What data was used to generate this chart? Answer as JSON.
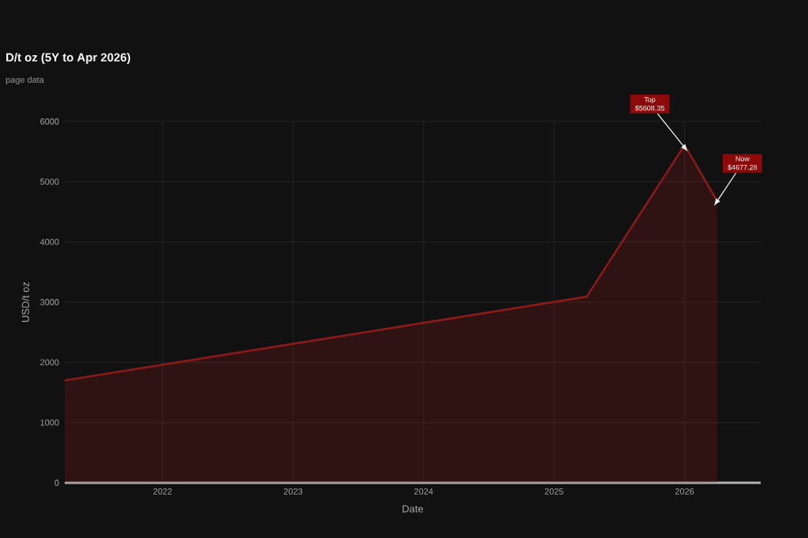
{
  "chart_data": {
    "type": "area",
    "title": "D/t oz (5Y to Apr 2026)",
    "subtitle": "page data",
    "xlabel": "Date",
    "ylabel": "USD/t oz",
    "x": [
      "2021-04",
      "2025-04",
      "2026-01",
      "2026-04"
    ],
    "series": [
      {
        "color": "#8b1a1a",
        "values": [
          1700,
          3090,
          5608,
          4677
        ]
      }
    ],
    "xlim": [
      "2021-04",
      "2026-08"
    ],
    "xticks": [
      {
        "value": "2022",
        "label": "2022"
      },
      {
        "value": "2023",
        "label": "2023"
      },
      {
        "value": "2024",
        "label": "2024"
      },
      {
        "value": "2025",
        "label": "2025"
      },
      {
        "value": "2026",
        "label": "2026"
      }
    ],
    "ylim": [
      0,
      6000
    ],
    "yticks": [
      0,
      1000,
      2000,
      3000,
      4000,
      5000,
      6000
    ],
    "grid": true,
    "annotations": [
      {
        "text": "Top $5608.35",
        "x": "2026-01",
        "y": 5608
      },
      {
        "text": "Now $4677.28",
        "x": "2026-04",
        "y": 4677
      }
    ]
  }
}
